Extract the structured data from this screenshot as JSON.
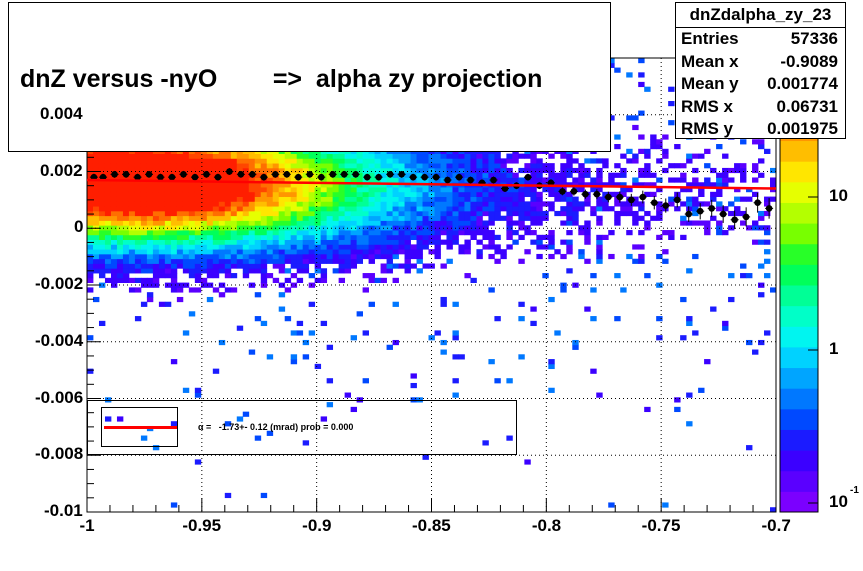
{
  "chart_data": {
    "type": "heatmap",
    "title": "dnZ versus -nyO        =>  alpha zy projection",
    "xlim": [
      -1,
      -0.7
    ],
    "ylim": [
      -0.01,
      0.006
    ],
    "x_ticks": [
      "-1",
      "-0.95",
      "-0.9",
      "-0.85",
      "-0.8",
      "-0.75",
      "-0.7"
    ],
    "y_ticks": [
      "-0.01",
      "-0.008",
      "-0.006",
      "-0.004",
      "-0.002",
      "0",
      "0.002",
      "0.004"
    ],
    "z_scale": "log",
    "z_ticks": [
      "10",
      "1",
      "10"
    ],
    "z_tick_exponent": "-1",
    "grid": true,
    "profile_points": {
      "x": [
        -0.997,
        -0.993,
        -0.988,
        -0.983,
        -0.978,
        -0.973,
        -0.968,
        -0.963,
        -0.958,
        -0.953,
        -0.948,
        -0.943,
        -0.938,
        -0.933,
        -0.928,
        -0.923,
        -0.918,
        -0.913,
        -0.908,
        -0.903,
        -0.898,
        -0.893,
        -0.888,
        -0.883,
        -0.878,
        -0.873,
        -0.868,
        -0.863,
        -0.858,
        -0.853,
        -0.848,
        -0.843,
        -0.838,
        -0.833,
        -0.828,
        -0.823,
        -0.818,
        -0.813,
        -0.808,
        -0.803,
        -0.798,
        -0.793,
        -0.788,
        -0.783,
        -0.778,
        -0.773,
        -0.768,
        -0.763,
        -0.758,
        -0.753,
        -0.748,
        -0.743,
        -0.738,
        -0.733,
        -0.728,
        -0.723,
        -0.718,
        -0.713,
        -0.708,
        -0.703
      ],
      "y": [
        0.0018,
        0.0018,
        0.0019,
        0.0019,
        0.0018,
        0.0019,
        0.0018,
        0.0018,
        0.0019,
        0.0018,
        0.0019,
        0.0018,
        0.002,
        0.0019,
        0.0019,
        0.0018,
        0.0019,
        0.0019,
        0.0018,
        0.0019,
        0.0018,
        0.0019,
        0.0019,
        0.0019,
        0.0018,
        0.0018,
        0.0019,
        0.0019,
        0.0018,
        0.0018,
        0.0018,
        0.0017,
        0.0018,
        0.0017,
        0.0016,
        0.0017,
        0.0014,
        0.0015,
        0.0018,
        0.0015,
        0.0016,
        0.0013,
        0.0013,
        0.0012,
        0.0012,
        0.0011,
        0.0011,
        0.001,
        0.0011,
        0.0009,
        0.0008,
        0.001,
        0.0005,
        0.0006,
        0.0007,
        0.0005,
        0.0003,
        0.0004,
        0.0009,
        0.0007
      ]
    },
    "fit_line": {
      "x": [
        -1,
        -0.7
      ],
      "y": [
        0.0017,
        0.0014
      ],
      "color": "#ff0000"
    }
  },
  "stats": {
    "name": "dnZdalpha_zy_23",
    "rows": [
      {
        "label": "Entries",
        "value": "57336"
      },
      {
        "label": "Mean x",
        "value": "-0.9089"
      },
      {
        "label": "Mean y",
        "value": "0.001774"
      },
      {
        "label": "RMS x",
        "value": "0.06731"
      },
      {
        "label": "RMS y",
        "value": "0.001975"
      }
    ]
  },
  "fit_legend": {
    "text": "α =   -1.73+- 0.12 (mrad) prob = 0.000"
  }
}
